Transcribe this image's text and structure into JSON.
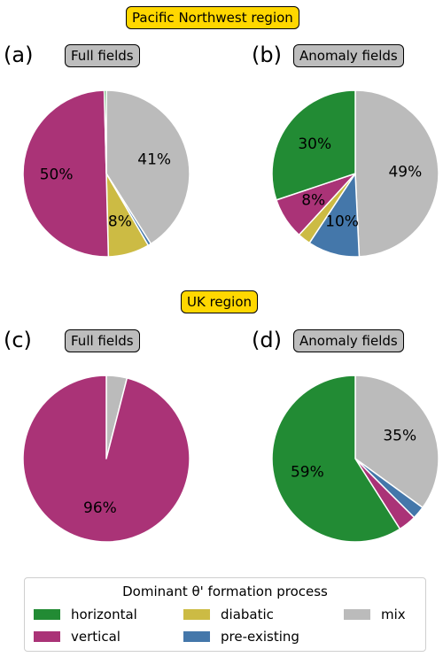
{
  "regions": {
    "pnw": "Pacific Northwest region",
    "uk": "UK region"
  },
  "panels": [
    {
      "letter": "(a)",
      "title": "Full fields"
    },
    {
      "letter": "(b)",
      "title": "Anomaly fields"
    },
    {
      "letter": "(c)",
      "title": "Full fields"
    },
    {
      "letter": "(d)",
      "title": "Anomaly fields"
    }
  ],
  "legend": {
    "title": "Dominant θ' formation process",
    "items": [
      {
        "key": "horizontal",
        "label": "horizontal",
        "color": "#228b34"
      },
      {
        "key": "vertical",
        "label": "vertical",
        "color": "#aa3377"
      },
      {
        "key": "diabatic",
        "label": "diabatic",
        "color": "#ccbb44"
      },
      {
        "key": "pre_existing",
        "label": "pre-existing",
        "color": "#4477aa"
      },
      {
        "key": "mix",
        "label": "mix",
        "color": "#bbbbbb"
      }
    ]
  },
  "chart_data": [
    {
      "type": "pie",
      "panel": "(a)",
      "title": "Full fields",
      "region": "Pacific Northwest region",
      "start": "12 o'clock",
      "direction": "clockwise",
      "slices": [
        {
          "category": "mix",
          "value": 41,
          "label": "41%"
        },
        {
          "category": "pre-existing",
          "value": 0.6,
          "label": ""
        },
        {
          "category": "diabatic",
          "value": 8,
          "label": "8%"
        },
        {
          "category": "vertical",
          "value": 50,
          "label": "50%"
        },
        {
          "category": "horizontal",
          "value": 0.4,
          "label": ""
        }
      ]
    },
    {
      "type": "pie",
      "panel": "(b)",
      "title": "Anomaly fields",
      "region": "Pacific Northwest region",
      "start": "12 o'clock",
      "direction": "clockwise",
      "slices": [
        {
          "category": "mix",
          "value": 49,
          "label": "49%"
        },
        {
          "category": "pre-existing",
          "value": 10,
          "label": "10%"
        },
        {
          "category": "diabatic",
          "value": 2.5,
          "label": ""
        },
        {
          "category": "vertical",
          "value": 8,
          "label": "8%"
        },
        {
          "category": "horizontal",
          "value": 30,
          "label": "30%"
        }
      ]
    },
    {
      "type": "pie",
      "panel": "(c)",
      "title": "Full fields",
      "region": "UK region",
      "start": "12 o'clock",
      "direction": "clockwise",
      "slices": [
        {
          "category": "mix",
          "value": 4,
          "label": ""
        },
        {
          "category": "vertical",
          "value": 96,
          "label": "96%"
        }
      ]
    },
    {
      "type": "pie",
      "panel": "(d)",
      "title": "Anomaly fields",
      "region": "UK region",
      "start": "12 o'clock",
      "direction": "clockwise",
      "slices": [
        {
          "category": "mix",
          "value": 35,
          "label": "35%"
        },
        {
          "category": "pre-existing",
          "value": 2.5,
          "label": ""
        },
        {
          "category": "vertical",
          "value": 3.5,
          "label": ""
        },
        {
          "category": "horizontal",
          "value": 59,
          "label": "59%"
        }
      ]
    }
  ]
}
